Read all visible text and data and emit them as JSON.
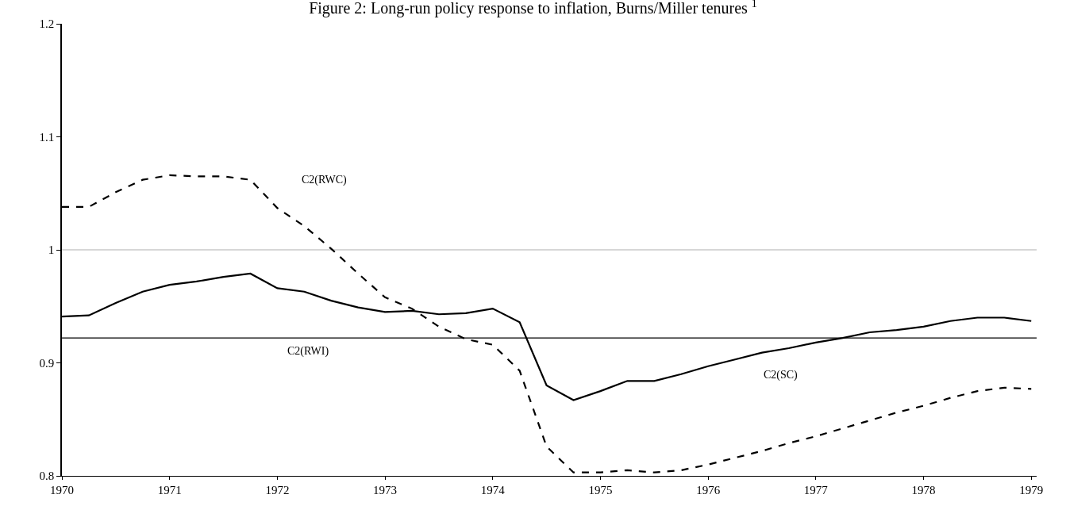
{
  "chart_data": {
    "type": "line",
    "title": "Figure 2: Long-run policy response to inflation, Burns/Miller tenures $^{1}$",
    "x": [
      1970.0,
      1970.25,
      1970.5,
      1970.75,
      1971.0,
      1971.25,
      1971.5,
      1971.75,
      1972.0,
      1972.25,
      1972.5,
      1972.75,
      1973.0,
      1973.25,
      1973.5,
      1973.75,
      1974.0,
      1974.25,
      1974.5,
      1974.75,
      1975.0,
      1975.25,
      1975.5,
      1975.75,
      1976.0,
      1976.25,
      1976.5,
      1976.75,
      1977.0,
      1977.25,
      1977.5,
      1977.75,
      1978.0,
      1978.25,
      1978.5,
      1978.75,
      1979.0
    ],
    "series": [
      {
        "name": "C2(SC)",
        "color": "#000000",
        "line_style": "solid",
        "values": [
          0.941,
          0.942,
          0.953,
          0.963,
          0.969,
          0.972,
          0.976,
          0.979,
          0.966,
          0.963,
          0.955,
          0.949,
          0.945,
          0.946,
          0.943,
          0.944,
          0.948,
          0.936,
          0.88,
          0.867,
          0.875,
          0.884,
          0.884,
          0.89,
          0.897,
          0.903,
          0.909,
          0.913,
          0.918,
          0.922,
          0.927,
          0.929,
          0.932,
          0.937,
          0.94,
          0.94,
          0.937
        ]
      },
      {
        "name": "C2(RWC)",
        "color": "#000000",
        "line_style": "dashed",
        "values": [
          1.038,
          1.038,
          1.051,
          1.062,
          1.066,
          1.065,
          1.065,
          1.062,
          1.037,
          1.021,
          1.001,
          0.979,
          0.958,
          0.948,
          0.932,
          0.921,
          0.916,
          0.893,
          0.826,
          0.803,
          0.803,
          0.805,
          0.803,
          0.805,
          0.81,
          0.816,
          0.822,
          0.829,
          0.835,
          0.842,
          0.849,
          0.856,
          0.862,
          0.869,
          0.875,
          0.878,
          0.877
        ]
      }
    ],
    "ref_lines": [
      {
        "axis": "y",
        "value": 0.922,
        "label": "C2(RWI)",
        "color": "#000000"
      },
      {
        "axis": "y",
        "value": 1,
        "label": null,
        "color": "#b0b0b0"
      }
    ],
    "xlim": [
      1970,
      1979.05
    ],
    "xticks": [
      1970,
      1971,
      1972,
      1973,
      1974,
      1975,
      1976,
      1977,
      1978,
      1979
    ],
    "ylim": [
      0.8,
      1.2
    ],
    "yticks": [
      0.8,
      0.9,
      1,
      1.1,
      1.2
    ],
    "grid": false,
    "legend": false,
    "marker": "none"
  }
}
